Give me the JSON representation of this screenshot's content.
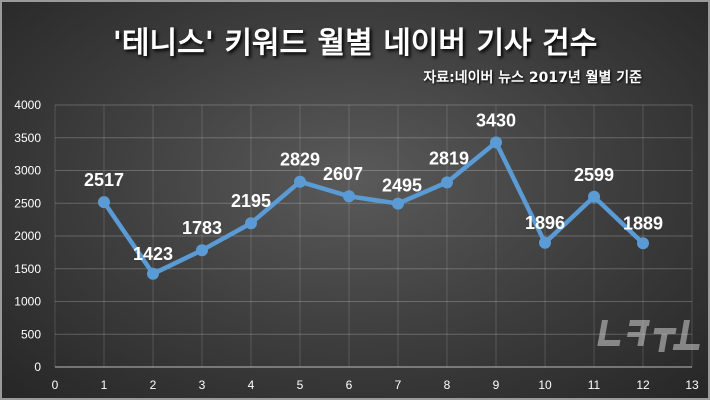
{
  "chart_data": {
    "type": "line",
    "title": "'테니스' 키워드 월별 네이버 기사 건수",
    "subtitle": "자료:네이버 뉴스 2017년 월별 기준",
    "x": [
      1,
      2,
      3,
      4,
      5,
      6,
      7,
      8,
      9,
      10,
      11,
      12
    ],
    "series": [
      {
        "name": "기사 건수",
        "values": [
          2517,
          1423,
          1783,
          2195,
          2829,
          2607,
          2495,
          2819,
          3430,
          1896,
          2599,
          1889
        ]
      }
    ],
    "xlim": [
      0,
      13
    ],
    "ylim": [
      0,
      4000
    ],
    "xticks": [
      0,
      1,
      2,
      3,
      4,
      5,
      6,
      7,
      8,
      9,
      10,
      11,
      12,
      13
    ],
    "yticks": [
      0,
      500,
      1000,
      1500,
      2000,
      2500,
      3000,
      3500,
      4000
    ],
    "grid": true,
    "xlabel": "",
    "ylabel": "",
    "line_color": "#5b9bd5"
  },
  "watermark": "노컷뉴스"
}
